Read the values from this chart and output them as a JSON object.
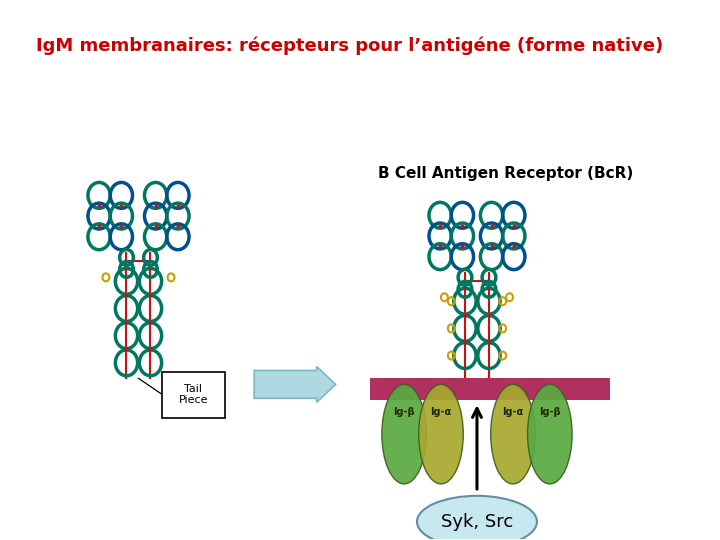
{
  "title": "IgM membranaires: récepteurs pour l’antigéne (forme native)",
  "title_color": "#cc0000",
  "title_fontsize": 13,
  "bcr_label": "B Cell Antigen Receptor (BcR)",
  "bcr_label_color": "#000000",
  "bcr_label_fontsize": 11,
  "syk_src_label": "Syk, Src",
  "syk_src_fontsize": 13,
  "tail_piece_label": "Tail\nPiece",
  "ig_beta_label": "Ig-β",
  "ig_alpha_label": "Ig-α",
  "background_color": "#ffffff",
  "membrane_color": "#b03060",
  "arrow_color": "#b0d8e0",
  "arrow_edge_color": "#7ab8c8",
  "syk_ellipse_color": "#c8e8f0",
  "syk_ellipse_edge": "#6090a0",
  "ig_green_color": "#5aaa40",
  "ig_yellow_color": "#a8a830",
  "antibody_teal": "#007860",
  "antibody_blue": "#005090",
  "red_connector": "#cc1010",
  "gold_color": "#c8a000"
}
